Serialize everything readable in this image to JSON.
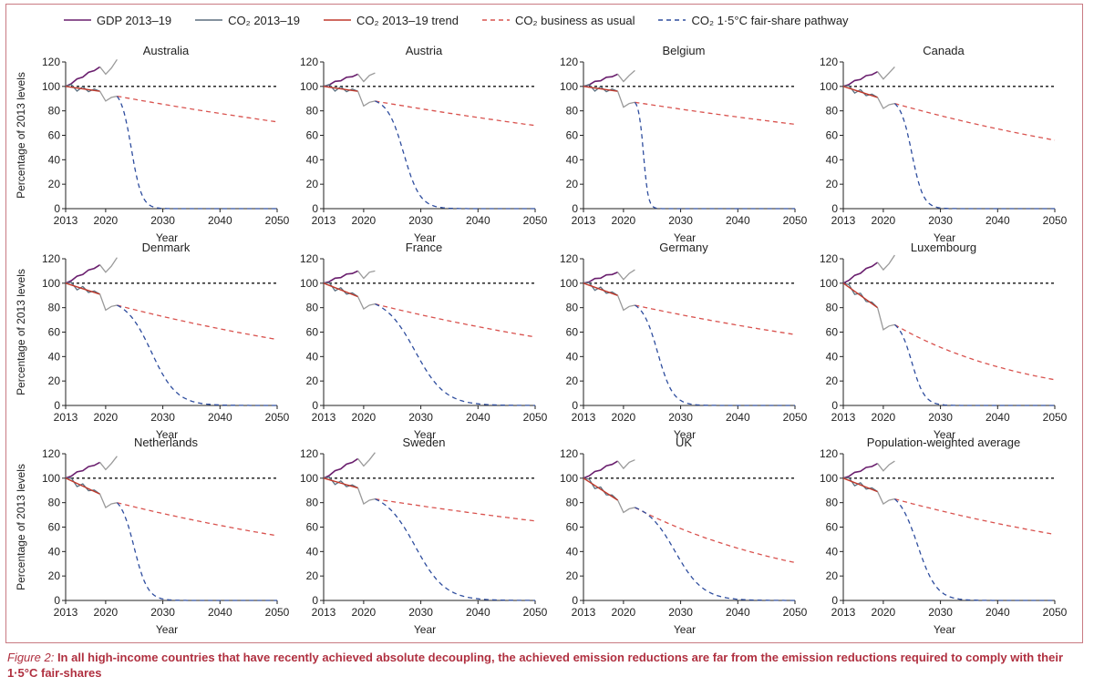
{
  "legend": [
    {
      "label": "GDP 2013–19",
      "color": "#6a1f6e",
      "dash": ""
    },
    {
      "label": "CO₂ 2013–19",
      "color": "#5b6f7f",
      "dash": ""
    },
    {
      "label": "CO₂ 2013–19 trend",
      "color": "#c0392b",
      "dash": ""
    },
    {
      "label": "CO₂ business as usual",
      "color": "#d9534f",
      "dash": "5,4"
    },
    {
      "label": "CO₂ 1·5°C fair-share pathway",
      "color": "#2e4d9e",
      "dash": "5,4"
    }
  ],
  "chart_data": {
    "type": "line",
    "ylabel": "Percentage of 2013 levels",
    "xlabel": "Year",
    "xlim": [
      2013,
      2050
    ],
    "ylim": [
      0,
      120
    ],
    "xticks": [
      2013,
      2020,
      2030,
      2040,
      2050
    ],
    "yticks": [
      0,
      20,
      40,
      60,
      80,
      100,
      120
    ],
    "reference_line": 100,
    "panels": [
      {
        "title": "Australia",
        "gdp_2019": 116,
        "gdp_2022": 122,
        "co2_2019": 96,
        "co2_2022": 92,
        "bau_2050": 71,
        "fair_drop_mid": 2024.5,
        "fair_drop_steep": 1.1
      },
      {
        "title": "Austria",
        "gdp_2019": 110,
        "gdp_2022": 111,
        "co2_2019": 96,
        "co2_2022": 88,
        "bau_2050": 68,
        "fair_drop_mid": 2027,
        "fair_drop_steep": 0.7
      },
      {
        "title": "Belgium",
        "gdp_2019": 110,
        "gdp_2022": 113,
        "co2_2019": 96,
        "co2_2022": 87,
        "bau_2050": 69,
        "fair_drop_mid": 2023.5,
        "fair_drop_steep": 2.4
      },
      {
        "title": "Canada",
        "gdp_2019": 112,
        "gdp_2022": 116,
        "co2_2019": 91,
        "co2_2022": 86,
        "bau_2050": 56,
        "fair_drop_mid": 2025,
        "fair_drop_steep": 1.0
      },
      {
        "title": "Denmark",
        "gdp_2019": 115,
        "gdp_2022": 121,
        "co2_2019": 91,
        "co2_2022": 82,
        "bau_2050": 54,
        "fair_drop_mid": 2028,
        "fair_drop_steep": 0.45
      },
      {
        "title": "France",
        "gdp_2019": 110,
        "gdp_2022": 110,
        "co2_2019": 89,
        "co2_2022": 83,
        "bau_2050": 56,
        "fair_drop_mid": 2029,
        "fair_drop_steep": 0.38
      },
      {
        "title": "Germany",
        "gdp_2019": 109,
        "gdp_2022": 111,
        "co2_2019": 90,
        "co2_2022": 82,
        "bau_2050": 58,
        "fair_drop_mid": 2026,
        "fair_drop_steep": 0.75
      },
      {
        "title": "Luxembourg",
        "gdp_2019": 117,
        "gdp_2022": 123,
        "co2_2019": 80,
        "co2_2022": 66,
        "bau_2050": 21,
        "fair_drop_mid": 2025,
        "fair_drop_steep": 0.9
      },
      {
        "title": "Netherlands",
        "gdp_2019": 113,
        "gdp_2022": 118,
        "co2_2019": 87,
        "co2_2022": 80,
        "bau_2050": 53,
        "fair_drop_mid": 2025,
        "fair_drop_steep": 0.85
      },
      {
        "title": "Sweden",
        "gdp_2019": 116,
        "gdp_2022": 121,
        "co2_2019": 92,
        "co2_2022": 83,
        "bau_2050": 65,
        "fair_drop_mid": 2029,
        "fair_drop_steep": 0.38
      },
      {
        "title": "UK",
        "gdp_2019": 114,
        "gdp_2022": 115,
        "co2_2019": 82,
        "co2_2022": 76,
        "bau_2050": 31,
        "fair_drop_mid": 2029,
        "fair_drop_steep": 0.4
      },
      {
        "title": "Population-weighted average",
        "gdp_2019": 112,
        "gdp_2022": 114,
        "co2_2019": 89,
        "co2_2022": 83,
        "bau_2050": 54,
        "fair_drop_mid": 2026,
        "fair_drop_steep": 0.6
      }
    ]
  },
  "caption": {
    "figure_label": "Figure 2:",
    "text": "In all high-income countries that have recently achieved absolute decoupling, the achieved emission reductions are far from the emission reductions required to comply with their 1·5°C fair-shares"
  }
}
